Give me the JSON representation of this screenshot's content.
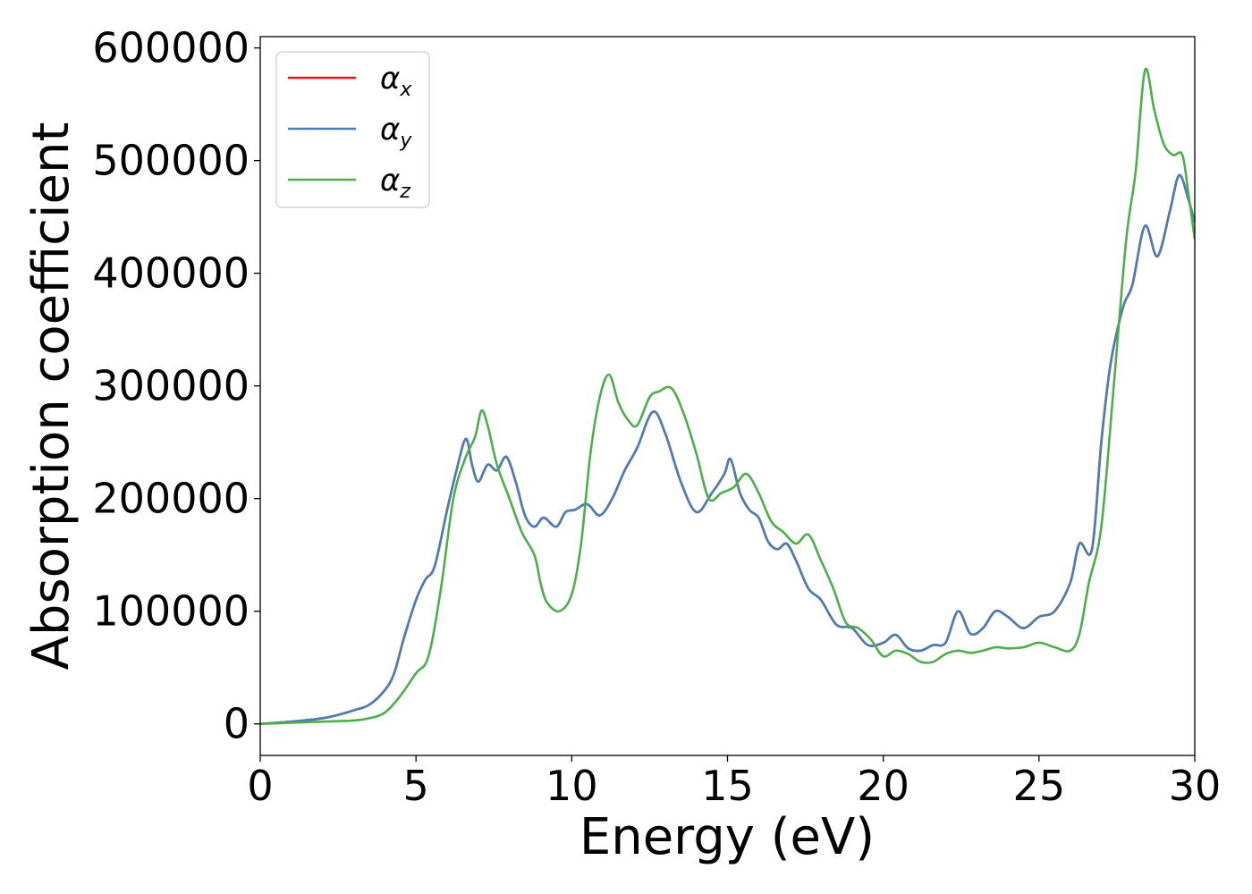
{
  "chart_data": {
    "type": "line",
    "title": "",
    "xlabel": "Energy (eV)",
    "ylabel": "Absorption coefficient",
    "xlim": [
      0,
      30
    ],
    "ylim": [
      -28000,
      610000
    ],
    "xticks": [
      0,
      5,
      10,
      15,
      20,
      25,
      30
    ],
    "xtick_labels": [
      "0",
      "5",
      "10",
      "15",
      "20",
      "25",
      "30"
    ],
    "yticks": [
      0,
      100000,
      200000,
      300000,
      400000,
      500000,
      600000
    ],
    "ytick_labels": [
      "0",
      "100000",
      "200000",
      "300000",
      "400000",
      "500000",
      "600000"
    ],
    "grid": false,
    "legend_position": "top-left",
    "series": [
      {
        "name": "α",
        "subscript": "x",
        "color": "#e41a1c",
        "x": [
          0,
          1,
          2,
          2.5,
          3,
          3.5,
          4,
          4.3,
          4.6,
          5,
          5.3,
          5.6,
          6,
          6.3,
          6.6,
          6.8,
          7,
          7.3,
          7.6,
          7.9,
          8.2,
          8.5,
          8.8,
          9.1,
          9.5,
          9.8,
          10.1,
          10.5,
          10.9,
          11.3,
          11.7,
          12.1,
          12.6,
          13,
          13.5,
          14,
          14.5,
          14.9,
          15.1,
          15.4,
          15.7,
          16,
          16.3,
          16.6,
          16.9,
          17.2,
          17.6,
          18,
          18.5,
          19,
          19.5,
          20,
          20.4,
          20.8,
          21.2,
          21.6,
          22,
          22.4,
          22.8,
          23.2,
          23.6,
          24,
          24.5,
          25,
          25.5,
          26,
          26.3,
          26.7,
          27,
          27.3,
          27.7,
          28,
          28.4,
          28.8,
          29.2,
          29.5,
          29.8,
          30
        ],
        "y": [
          0,
          2000,
          5000,
          8000,
          12000,
          17000,
          30000,
          45000,
          75000,
          110000,
          128000,
          140000,
          190000,
          225000,
          253000,
          230000,
          215000,
          230000,
          225000,
          237000,
          215000,
          185000,
          175000,
          183000,
          175000,
          188000,
          190000,
          195000,
          185000,
          200000,
          225000,
          245000,
          277000,
          258000,
          215000,
          188000,
          205000,
          222000,
          235000,
          205000,
          190000,
          183000,
          162000,
          155000,
          160000,
          145000,
          120000,
          110000,
          88000,
          85000,
          70000,
          72000,
          79000,
          67000,
          65000,
          70000,
          72000,
          100000,
          80000,
          85000,
          100000,
          95000,
          85000,
          95000,
          100000,
          125000,
          160000,
          155000,
          250000,
          320000,
          370000,
          390000,
          442000,
          415000,
          455000,
          487000,
          465000,
          445000
        ]
      },
      {
        "name": "α",
        "subscript": "y",
        "color": "#4a7fb5",
        "x": [
          0,
          1,
          2,
          2.5,
          3,
          3.5,
          4,
          4.3,
          4.6,
          5,
          5.3,
          5.6,
          6,
          6.3,
          6.6,
          6.8,
          7,
          7.3,
          7.6,
          7.9,
          8.2,
          8.5,
          8.8,
          9.1,
          9.5,
          9.8,
          10.1,
          10.5,
          10.9,
          11.3,
          11.7,
          12.1,
          12.6,
          13,
          13.5,
          14,
          14.5,
          14.9,
          15.1,
          15.4,
          15.7,
          16,
          16.3,
          16.6,
          16.9,
          17.2,
          17.6,
          18,
          18.5,
          19,
          19.5,
          20,
          20.4,
          20.8,
          21.2,
          21.6,
          22,
          22.4,
          22.8,
          23.2,
          23.6,
          24,
          24.5,
          25,
          25.5,
          26,
          26.3,
          26.7,
          27,
          27.3,
          27.7,
          28,
          28.4,
          28.8,
          29.2,
          29.5,
          29.8,
          30
        ],
        "y": [
          0,
          2000,
          5000,
          8000,
          12000,
          17000,
          30000,
          45000,
          75000,
          110000,
          128000,
          140000,
          190000,
          225000,
          253000,
          230000,
          215000,
          230000,
          225000,
          237000,
          215000,
          185000,
          175000,
          183000,
          175000,
          188000,
          190000,
          195000,
          185000,
          200000,
          225000,
          245000,
          277000,
          258000,
          215000,
          188000,
          205000,
          222000,
          235000,
          205000,
          190000,
          183000,
          162000,
          155000,
          160000,
          145000,
          120000,
          110000,
          88000,
          85000,
          70000,
          72000,
          79000,
          67000,
          65000,
          70000,
          72000,
          100000,
          80000,
          85000,
          100000,
          95000,
          85000,
          95000,
          100000,
          125000,
          160000,
          155000,
          250000,
          320000,
          370000,
          390000,
          442000,
          415000,
          455000,
          487000,
          465000,
          445000
        ]
      },
      {
        "name": "α",
        "subscript": "z",
        "color": "#4daf4a",
        "x": [
          0,
          1,
          2,
          3,
          3.5,
          4,
          4.5,
          5,
          5.4,
          5.8,
          6.2,
          6.6,
          6.9,
          7.1,
          7.3,
          7.6,
          8,
          8.4,
          8.8,
          9,
          9.2,
          9.6,
          10,
          10.3,
          10.6,
          10.9,
          11.2,
          11.5,
          11.8,
          12.1,
          12.5,
          12.8,
          13.2,
          13.6,
          14,
          14.4,
          14.8,
          15.2,
          15.6,
          16,
          16.4,
          16.8,
          17.2,
          17.6,
          18,
          18.4,
          18.8,
          19.2,
          19.6,
          20,
          20.4,
          20.8,
          21.2,
          21.6,
          22,
          22.4,
          22.8,
          23.2,
          23.6,
          24,
          24.5,
          25,
          25.5,
          26,
          26.3,
          26.6,
          27,
          27.4,
          27.8,
          28.1,
          28.4,
          28.7,
          29,
          29.3,
          29.6,
          29.8,
          30
        ],
        "y": [
          0,
          1000,
          2000,
          3000,
          5000,
          10000,
          25000,
          45000,
          60000,
          120000,
          200000,
          237000,
          255000,
          278000,
          265000,
          230000,
          200000,
          170000,
          150000,
          125000,
          108000,
          100000,
          115000,
          160000,
          240000,
          290000,
          310000,
          285000,
          270000,
          265000,
          290000,
          295000,
          298000,
          275000,
          240000,
          200000,
          205000,
          210000,
          222000,
          205000,
          180000,
          170000,
          160000,
          168000,
          145000,
          120000,
          90000,
          85000,
          75000,
          60000,
          65000,
          62000,
          55000,
          55000,
          62000,
          65000,
          63000,
          65000,
          68000,
          67000,
          68000,
          72000,
          68000,
          65000,
          80000,
          125000,
          175000,
          300000,
          430000,
          490000,
          580000,
          545000,
          515000,
          505000,
          505000,
          470000,
          430000
        ]
      }
    ]
  }
}
